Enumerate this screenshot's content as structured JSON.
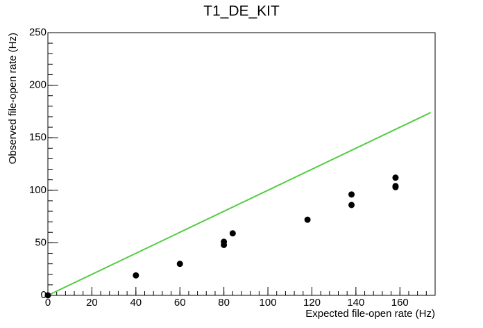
{
  "chart_data": {
    "type": "scatter",
    "title": "T1_DE_KIT",
    "x_label": "Expected file-open rate (Hz)",
    "y_label": "Observed file-open rate (Hz)",
    "xlim": [
      0,
      176
    ],
    "xticks": [
      0,
      20,
      40,
      60,
      80,
      100,
      120,
      140,
      160
    ],
    "ylim": [
      0,
      250
    ],
    "yticks": [
      0,
      50,
      100,
      150,
      200,
      250
    ],
    "series": [
      {
        "type": "scatter",
        "color": "#000000",
        "x": [
          0,
          40,
          60,
          80,
          80,
          84,
          118,
          138,
          138,
          158,
          158,
          158
        ],
        "values": [
          0,
          19,
          30,
          51,
          48,
          59,
          72,
          96,
          86,
          112,
          104,
          103
        ]
      },
      {
        "type": "line",
        "color": "#55cc44",
        "x": [
          0,
          174
        ],
        "values": [
          0,
          174
        ]
      }
    ]
  }
}
